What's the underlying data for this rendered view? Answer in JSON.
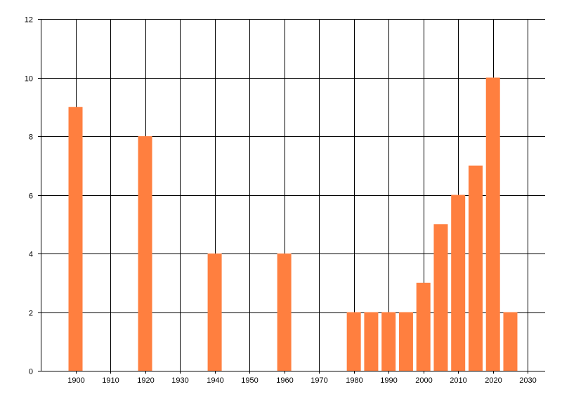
{
  "chart_data": {
    "type": "bar",
    "x": [
      1900,
      1920,
      1940,
      1960,
      1980,
      1985,
      1990,
      1995,
      2000,
      2005,
      2010,
      2015,
      2020,
      2025
    ],
    "values": [
      9,
      8,
      4,
      4,
      2,
      2,
      2,
      2,
      3,
      5,
      6,
      7,
      10,
      2
    ],
    "xlim": [
      1890,
      2035
    ],
    "ylim": [
      0,
      12
    ],
    "xticks": [
      1900,
      1910,
      1920,
      1930,
      1940,
      1950,
      1960,
      1970,
      1980,
      1990,
      2000,
      2010,
      2020,
      2030
    ],
    "yticks": [
      0,
      2,
      4,
      6,
      8,
      10,
      12
    ],
    "grid": true,
    "title": "",
    "xlabel": "",
    "ylabel": "",
    "bar_color": "#FF7F3F"
  }
}
